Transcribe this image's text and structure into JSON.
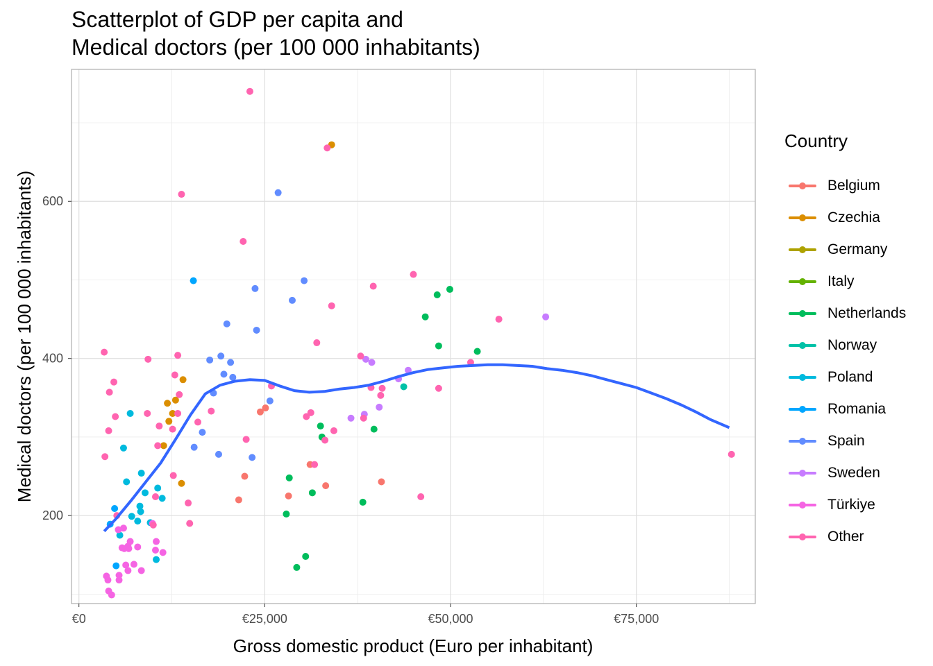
{
  "chart_data": {
    "type": "scatter",
    "title_lines": [
      "Scatterplot of GDP per capita and",
      "Medical doctors (per 100 000 inhabitants)"
    ],
    "xlabel": "Gross domestic product (Euro per inhabitant)",
    "ylabel": "Medical doctors (per 100 000 inhabitants)",
    "xlim": [
      -1000,
      91000
    ],
    "ylim": [
      88,
      768
    ],
    "x_ticks": [
      {
        "value": 0,
        "label": "€0"
      },
      {
        "value": 25000,
        "label": "€25,000"
      },
      {
        "value": 50000,
        "label": "€50,000"
      },
      {
        "value": 75000,
        "label": "€75,000"
      }
    ],
    "y_ticks": [
      {
        "value": 200,
        "label": "200"
      },
      {
        "value": 400,
        "label": "400"
      },
      {
        "value": 600,
        "label": "600"
      }
    ],
    "grid": true,
    "legend": {
      "title": "Country",
      "position": "right"
    },
    "series": [
      {
        "name": "Belgium",
        "color": "#F8766D",
        "points": [
          [
            21500,
            220
          ],
          [
            22300,
            250
          ],
          [
            24400,
            332
          ],
          [
            25100,
            337
          ],
          [
            28200,
            225
          ],
          [
            31100,
            265
          ],
          [
            33200,
            238
          ],
          [
            40700,
            243
          ]
        ]
      },
      {
        "name": "Czechia",
        "color": "#DB8E00",
        "points": [
          [
            11400,
            289
          ],
          [
            11900,
            343
          ],
          [
            12100,
            320
          ],
          [
            12600,
            330
          ],
          [
            13000,
            347
          ],
          [
            13800,
            241
          ],
          [
            14000,
            373
          ],
          [
            34000,
            672
          ]
        ]
      },
      {
        "name": "Germany",
        "color": "#AEA200",
        "points": []
      },
      {
        "name": "Italy",
        "color": "#64B200",
        "points": []
      },
      {
        "name": "Netherlands",
        "color": "#00BD5C",
        "points": [
          [
            27900,
            202
          ],
          [
            28300,
            248
          ],
          [
            29300,
            134
          ],
          [
            30500,
            148
          ],
          [
            31400,
            229
          ],
          [
            32500,
            314
          ],
          [
            32700,
            300
          ],
          [
            38200,
            217
          ],
          [
            39700,
            310
          ],
          [
            46600,
            453
          ],
          [
            48200,
            481
          ],
          [
            48400,
            416
          ],
          [
            49900,
            488
          ],
          [
            53600,
            409
          ]
        ]
      },
      {
        "name": "Norway",
        "color": "#00C1A7",
        "points": [
          [
            43700,
            364
          ]
        ]
      },
      {
        "name": "Poland",
        "color": "#00BADE",
        "points": [
          [
            5500,
            175
          ],
          [
            6000,
            286
          ],
          [
            6400,
            243
          ],
          [
            6900,
            330
          ],
          [
            7100,
            199
          ],
          [
            7900,
            193
          ],
          [
            8200,
            212
          ],
          [
            8300,
            205
          ],
          [
            8400,
            254
          ],
          [
            8900,
            229
          ],
          [
            9600,
            191
          ],
          [
            10400,
            144
          ],
          [
            10600,
            235
          ],
          [
            11200,
            222
          ]
        ]
      },
      {
        "name": "Romania",
        "color": "#00A6FF",
        "points": [
          [
            4200,
            189
          ],
          [
            4800,
            209
          ],
          [
            5000,
            136
          ],
          [
            15400,
            499
          ]
        ]
      },
      {
        "name": "Spain",
        "color": "#618CFF",
        "points": [
          [
            15500,
            287
          ],
          [
            16600,
            306
          ],
          [
            17600,
            398
          ],
          [
            18100,
            356
          ],
          [
            18800,
            278
          ],
          [
            19100,
            403
          ],
          [
            19500,
            380
          ],
          [
            19900,
            444
          ],
          [
            20400,
            395
          ],
          [
            20700,
            376
          ],
          [
            23300,
            274
          ],
          [
            23700,
            489
          ],
          [
            23900,
            436
          ],
          [
            25700,
            346
          ],
          [
            26800,
            611
          ],
          [
            28700,
            474
          ],
          [
            30300,
            499
          ]
        ]
      },
      {
        "name": "Sweden",
        "color": "#C77CFF",
        "points": [
          [
            36600,
            324
          ],
          [
            38400,
            329
          ],
          [
            38600,
            399
          ],
          [
            39400,
            395
          ],
          [
            40400,
            338
          ],
          [
            43000,
            374
          ],
          [
            44300,
            385
          ],
          [
            62800,
            453
          ]
        ]
      },
      {
        "name": "Türkiye",
        "color": "#F564E3",
        "points": [
          [
            3700,
            123
          ],
          [
            3900,
            118
          ],
          [
            4000,
            104
          ],
          [
            4400,
            99
          ],
          [
            5300,
            182
          ],
          [
            5400,
            118
          ],
          [
            5400,
            124
          ],
          [
            5800,
            159
          ],
          [
            6000,
            184
          ],
          [
            6100,
            158
          ],
          [
            6300,
            137
          ],
          [
            6600,
            161
          ],
          [
            6600,
            130
          ],
          [
            6700,
            158
          ],
          [
            6900,
            167
          ],
          [
            7400,
            138
          ],
          [
            7900,
            160
          ],
          [
            8400,
            130
          ],
          [
            9900,
            190
          ],
          [
            10300,
            156
          ],
          [
            10400,
            167
          ],
          [
            11300,
            153
          ]
        ]
      },
      {
        "name": "Other",
        "color": "#FF64B0",
        "points": [
          [
            3400,
            408
          ],
          [
            3500,
            275
          ],
          [
            4000,
            308
          ],
          [
            4100,
            357
          ],
          [
            4700,
            370
          ],
          [
            4900,
            326
          ],
          [
            5100,
            200
          ],
          [
            9200,
            330
          ],
          [
            9300,
            399
          ],
          [
            10000,
            188
          ],
          [
            10300,
            224
          ],
          [
            10600,
            289
          ],
          [
            10800,
            314
          ],
          [
            12600,
            310
          ],
          [
            12700,
            251
          ],
          [
            12900,
            379
          ],
          [
            13300,
            404
          ],
          [
            13300,
            330
          ],
          [
            13500,
            354
          ],
          [
            13800,
            609
          ],
          [
            14700,
            216
          ],
          [
            14900,
            190
          ],
          [
            16000,
            319
          ],
          [
            17800,
            333
          ],
          [
            22100,
            549
          ],
          [
            22500,
            297
          ],
          [
            23000,
            740
          ],
          [
            25900,
            365
          ],
          [
            30600,
            326
          ],
          [
            31200,
            331
          ],
          [
            31700,
            265
          ],
          [
            32000,
            420
          ],
          [
            33100,
            296
          ],
          [
            33400,
            668
          ],
          [
            34000,
            467
          ],
          [
            34300,
            308
          ],
          [
            37900,
            403
          ],
          [
            38300,
            324
          ],
          [
            39300,
            363
          ],
          [
            39600,
            492
          ],
          [
            40600,
            353
          ],
          [
            40800,
            362
          ],
          [
            45000,
            507
          ],
          [
            46000,
            224
          ],
          [
            48400,
            362
          ],
          [
            52700,
            395
          ],
          [
            56500,
            450
          ],
          [
            87800,
            278
          ]
        ]
      }
    ],
    "trend": {
      "type": "loess",
      "color": "#3366FF",
      "points": [
        [
          3400,
          180
        ],
        [
          5000,
          196
        ],
        [
          7000,
          219
        ],
        [
          9000,
          243
        ],
        [
          11000,
          267
        ],
        [
          13000,
          297
        ],
        [
          15000,
          328
        ],
        [
          17000,
          355
        ],
        [
          19000,
          366
        ],
        [
          21000,
          371
        ],
        [
          23000,
          373
        ],
        [
          25000,
          372
        ],
        [
          27000,
          365
        ],
        [
          29000,
          359
        ],
        [
          31000,
          357
        ],
        [
          33000,
          358
        ],
        [
          35000,
          361
        ],
        [
          37000,
          363
        ],
        [
          39000,
          366
        ],
        [
          41000,
          371
        ],
        [
          43000,
          377
        ],
        [
          45000,
          382
        ],
        [
          47000,
          386
        ],
        [
          49000,
          388
        ],
        [
          51000,
          390
        ],
        [
          53000,
          391
        ],
        [
          55000,
          392
        ],
        [
          57000,
          392
        ],
        [
          59000,
          391
        ],
        [
          61000,
          390
        ],
        [
          63000,
          387
        ],
        [
          65000,
          385
        ],
        [
          67000,
          382
        ],
        [
          69000,
          378
        ],
        [
          71000,
          373
        ],
        [
          73000,
          368
        ],
        [
          75000,
          363
        ],
        [
          77000,
          356
        ],
        [
          79000,
          349
        ],
        [
          81000,
          341
        ],
        [
          83000,
          332
        ],
        [
          85000,
          322
        ],
        [
          87500,
          312
        ]
      ]
    }
  }
}
